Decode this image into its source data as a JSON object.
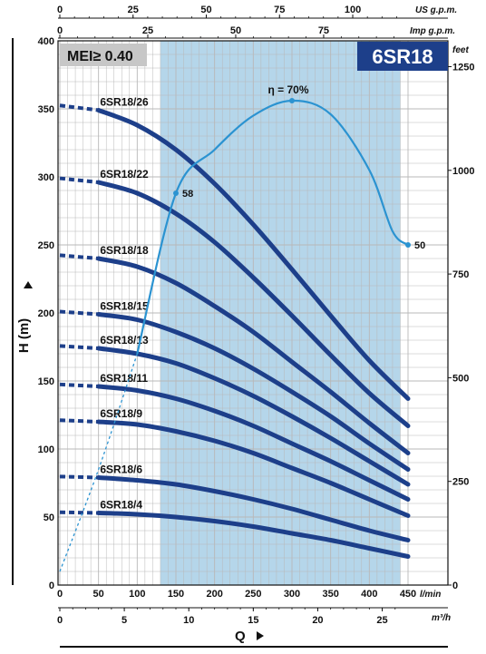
{
  "badge": {
    "mei": "MEI≥ 0.40",
    "model": "6SR18"
  },
  "colors": {
    "curve": "#1d3f8a",
    "efficiency": "#2b93d1",
    "band": "#b5d6ea",
    "grid": "#b8b8b8"
  },
  "axes": {
    "bottom_unit": "l/min",
    "flow_m3h_unit": "m³/h",
    "us_unit": "US g.p.m.",
    "imp_unit": "Imp g.p.m.",
    "feet_unit": "feet",
    "h_title": "H  (m)",
    "q_title": "Q"
  },
  "chart_data": {
    "type": "line",
    "xlim": [
      0,
      450
    ],
    "ylim": [
      0,
      400
    ],
    "x_ticks_lmin": [
      "0",
      "50",
      "100",
      "150",
      "200",
      "250",
      "300",
      "350",
      "400",
      "450"
    ],
    "y_ticks_m": [
      "0",
      "50",
      "100",
      "150",
      "200",
      "250",
      "300",
      "350",
      "400"
    ],
    "m3h_ticks": [
      "0",
      "5",
      "10",
      "15",
      "20",
      "25"
    ],
    "us_gpm_ticks": [
      "0",
      "25",
      "50",
      "75",
      "100"
    ],
    "imp_gpm_ticks": [
      "0",
      "25",
      "50",
      "75"
    ],
    "feet_ticks": [
      "0",
      "250",
      "500",
      "750",
      "1000",
      "1250"
    ],
    "efficiency_band_lmin": [
      130,
      440
    ],
    "series": [
      {
        "name": "6SR18/26",
        "x": [
          50,
          100,
          150,
          200,
          250,
          300,
          350,
          400,
          450
        ],
        "y": [
          349,
          338,
          320,
          295,
          265,
          232,
          198,
          165,
          137
        ]
      },
      {
        "name": "6SR18/22",
        "x": [
          50,
          100,
          150,
          200,
          250,
          300,
          350,
          400,
          450
        ],
        "y": [
          296,
          288,
          273,
          252,
          226,
          198,
          169,
          141,
          117
        ]
      },
      {
        "name": "6SR18/18",
        "x": [
          50,
          100,
          150,
          200,
          250,
          300,
          350,
          400,
          450
        ],
        "y": [
          240,
          234,
          222,
          205,
          186,
          164,
          142,
          119,
          97
        ]
      },
      {
        "name": "6SR18/15",
        "x": [
          50,
          100,
          150,
          200,
          250,
          300,
          350,
          400,
          450
        ],
        "y": [
          199,
          195,
          186,
          174,
          159,
          142,
          124,
          104,
          85
        ]
      },
      {
        "name": "6SR18/13",
        "x": [
          50,
          100,
          150,
          200,
          250,
          300,
          350,
          400,
          450
        ],
        "y": [
          174,
          170,
          163,
          152,
          139,
          124,
          108,
          91,
          74
        ]
      },
      {
        "name": "6SR18/11",
        "x": [
          50,
          100,
          150,
          200,
          250,
          300,
          350,
          400,
          450
        ],
        "y": [
          146,
          143,
          137,
          128,
          117,
          104,
          91,
          77,
          63
        ]
      },
      {
        "name": "6SR18/9",
        "x": [
          50,
          100,
          150,
          200,
          250,
          300,
          350,
          400,
          450
        ],
        "y": [
          120,
          118,
          113,
          106,
          97,
          86,
          75,
          63,
          51
        ]
      },
      {
        "name": "6SR18/6",
        "x": [
          50,
          100,
          150,
          200,
          250,
          300,
          350,
          400,
          450
        ],
        "y": [
          79,
          77,
          74,
          69,
          63,
          56,
          48,
          40,
          33
        ]
      },
      {
        "name": "6SR18/4",
        "x": [
          50,
          100,
          150,
          200,
          250,
          300,
          350,
          400,
          450
        ],
        "y": [
          53,
          52,
          50,
          47,
          43,
          38,
          33,
          27,
          21
        ]
      }
    ],
    "efficiency_curve": {
      "label": "η = 70%",
      "x": [
        0,
        50,
        100,
        150,
        200,
        250,
        300,
        350,
        400,
        430,
        450
      ],
      "y": [
        10,
        85,
        170,
        288,
        320,
        345,
        356,
        346,
        305,
        260,
        250
      ],
      "point_labels": [
        {
          "x": 150,
          "y": 288,
          "text": "58"
        },
        {
          "x": 450,
          "y": 250,
          "text": "50"
        }
      ]
    }
  }
}
